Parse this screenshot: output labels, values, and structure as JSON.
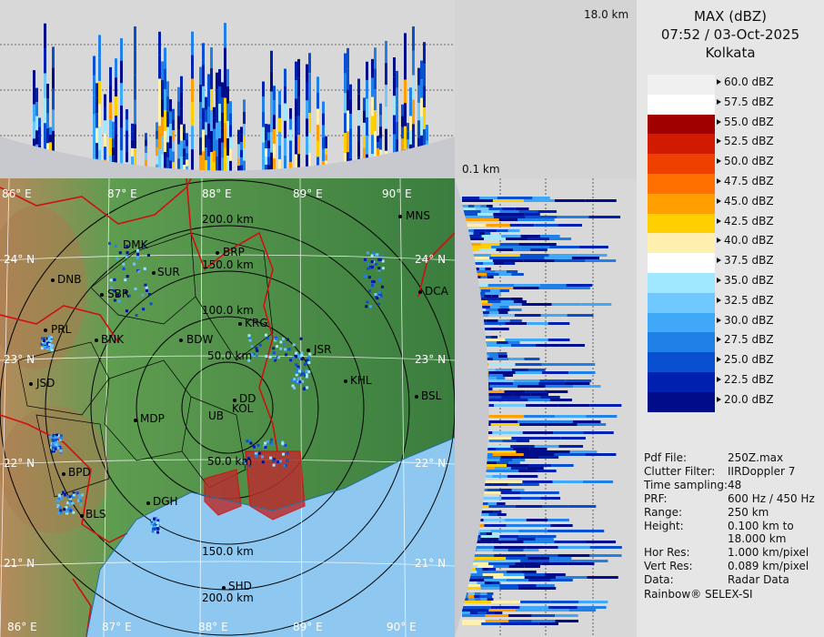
{
  "header": {
    "product": "MAX (dBZ)",
    "datetime": "07:52 / 03-Oct-2025",
    "site": "Kolkata"
  },
  "top_panel": {
    "height_label": "18.0 km"
  },
  "side_panel": {
    "height_label": "0.1 km"
  },
  "legend": {
    "entries": [
      {
        "label": "60.0 dBZ",
        "color": "#f0f0f0"
      },
      {
        "label": "57.5 dBZ",
        "color": "#ffffff"
      },
      {
        "label": "55.0 dBZ",
        "color": "#a00000"
      },
      {
        "label": "52.5 dBZ",
        "color": "#d21a00"
      },
      {
        "label": "50.0 dBZ",
        "color": "#f04000"
      },
      {
        "label": "47.5 dBZ",
        "color": "#ff7000"
      },
      {
        "label": "45.0 dBZ",
        "color": "#ffa000"
      },
      {
        "label": "42.5 dBZ",
        "color": "#ffd000"
      },
      {
        "label": "40.0 dBZ",
        "color": "#fff0b0"
      },
      {
        "label": "37.5 dBZ",
        "color": "#ffffff"
      },
      {
        "label": "35.0 dBZ",
        "color": "#a0e8ff"
      },
      {
        "label": "32.5 dBZ",
        "color": "#70c8ff"
      },
      {
        "label": "30.0 dBZ",
        "color": "#40a8f8"
      },
      {
        "label": "27.5 dBZ",
        "color": "#2080e8"
      },
      {
        "label": "25.0 dBZ",
        "color": "#0850d0"
      },
      {
        "label": "22.5 dBZ",
        "color": "#0020b0"
      },
      {
        "label": "20.0 dBZ",
        "color": "#000c88"
      }
    ]
  },
  "info": [
    {
      "key": "Pdf File:",
      "value": "250Z.max"
    },
    {
      "key": "Clutter Filter:",
      "value": "IIRDoppler 7"
    },
    {
      "key": "Time sampling:",
      "value": "48"
    },
    {
      "key": "PRF:",
      "value": "600 Hz / 450 Hz"
    },
    {
      "key": "Range:",
      "value": "250 km"
    },
    {
      "key": "Height:",
      "value": "0.100 km to"
    },
    {
      "key": "",
      "value": "18.000 km"
    },
    {
      "key": "Hor Res:",
      "value": "1.000 km/pixel"
    },
    {
      "key": "Vert Res:",
      "value": "0.089 km/pixel"
    },
    {
      "key": "Data:",
      "value": "Radar Data"
    }
  ],
  "footer": "Rainbow® SELEX-SI",
  "map": {
    "lon_labels": [
      "86° E",
      "87° E",
      "88° E",
      "89° E",
      "90° E"
    ],
    "lat_labels": [
      "24° N",
      "23° N",
      "22° N",
      "21° N"
    ],
    "range_labels": [
      "50.0 km",
      "100.0 km",
      "150.0 km",
      "200.0 km",
      "50.0 km",
      "150.0 km",
      "200.0 km"
    ],
    "stations": [
      "MNS",
      "BRP",
      "DMK",
      "SUR",
      "DNB",
      "SBR",
      "DCA",
      "KRG",
      "PRL",
      "BNK",
      "BDW",
      "JSR",
      "KHL",
      "JSD",
      "DD",
      "KOL",
      "UB",
      "BSL",
      "MDP",
      "BPD",
      "DGH",
      "BLS",
      "SHD"
    ]
  },
  "colors": {
    "sea": "#8ec8f0",
    "land": "#3c8a44",
    "hills": "#b58a5a",
    "border": "#d01010"
  }
}
